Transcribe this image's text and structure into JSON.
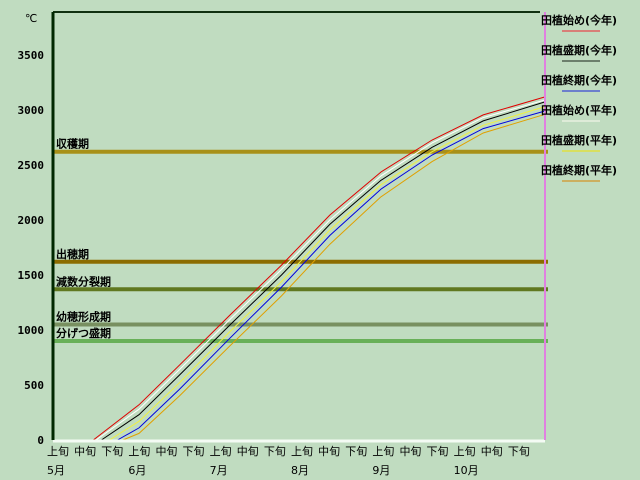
{
  "chart_data": {
    "type": "line",
    "ylabel": "℃",
    "ylim": [
      0,
      3890
    ],
    "yticks": [
      "0",
      "500",
      "1000",
      "1500",
      "2000",
      "2500",
      "3000",
      "3500"
    ],
    "x_range": [
      "5/1",
      "10/31"
    ],
    "x_period_labels": [
      "上旬",
      "中旬",
      "下旬"
    ],
    "x_month_labels": [
      "5月",
      "6月",
      "7月",
      "8月",
      "9月",
      "10月"
    ],
    "grid": false,
    "legend_placement": "right",
    "thresholds": [
      {
        "label": "収穫期",
        "value": 2620,
        "color": "#a89018"
      },
      {
        "label": "出穂期",
        "value": 1620,
        "color": "#8c6c00"
      },
      {
        "label": "減数分裂期",
        "value": 1370,
        "color": "#607820"
      },
      {
        "label": "幼穂形成期",
        "value": 1050,
        "color": "#789060"
      },
      {
        "label": "分げつ盛期",
        "value": 900,
        "color": "#68b058"
      }
    ],
    "series": [
      {
        "name": "田植始め(今年)",
        "color": "#e00000",
        "legend_color": "#e06060",
        "points": [
          [
            "5/16",
            0
          ],
          [
            "6/2",
            320
          ],
          [
            "6/17",
            680
          ],
          [
            "7/6",
            1140
          ],
          [
            "7/25",
            1590
          ],
          [
            "8/12",
            2045
          ],
          [
            "8/31",
            2436
          ],
          [
            "9/19",
            2727
          ],
          [
            "10/8",
            2955
          ],
          [
            "10/31",
            3118
          ]
        ]
      },
      {
        "name": "田植盛期(今年)",
        "color": "#000000",
        "legend_color": "#506050",
        "points": [
          [
            "5/19",
            0
          ],
          [
            "6/2",
            230
          ],
          [
            "6/17",
            590
          ],
          [
            "7/6",
            1050
          ],
          [
            "7/25",
            1500
          ],
          [
            "8/12",
            1960
          ],
          [
            "8/31",
            2360
          ],
          [
            "9/19",
            2660
          ],
          [
            "10/8",
            2900
          ],
          [
            "10/31",
            3073
          ]
        ]
      },
      {
        "name": "田植終期(今年)",
        "color": "#0000e0",
        "legend_color": "#5060d0",
        "points": [
          [
            "5/25",
            0
          ],
          [
            "6/2",
            110
          ],
          [
            "6/17",
            460
          ],
          [
            "7/6",
            930
          ],
          [
            "7/25",
            1390
          ],
          [
            "8/12",
            1860
          ],
          [
            "8/31",
            2280
          ],
          [
            "9/19",
            2590
          ],
          [
            "10/8",
            2830
          ],
          [
            "10/31",
            2990
          ]
        ]
      },
      {
        "name": "田植始め(平年)",
        "color": "#ffffff",
        "legend_color": "#e8f0e0",
        "points": [
          [
            "5/17",
            0
          ],
          [
            "6/2",
            280
          ],
          [
            "6/17",
            640
          ],
          [
            "7/6",
            1100
          ],
          [
            "7/25",
            1550
          ],
          [
            "8/12",
            2000
          ],
          [
            "8/31",
            2400
          ],
          [
            "9/19",
            2700
          ],
          [
            "10/8",
            2930
          ],
          [
            "10/31",
            3090
          ]
        ]
      },
      {
        "name": "田植盛期(平年)",
        "color": "#f0f040",
        "legend_color": "#e0e040",
        "points": [
          [
            "5/22",
            0
          ],
          [
            "6/2",
            170
          ],
          [
            "6/17",
            520
          ],
          [
            "7/6",
            990
          ],
          [
            "7/25",
            1440
          ],
          [
            "8/12",
            1910
          ],
          [
            "8/31",
            2320
          ],
          [
            "9/19",
            2620
          ],
          [
            "10/8",
            2860
          ],
          [
            "10/31",
            3030
          ]
        ]
      },
      {
        "name": "田植終期(平年)",
        "color": "#e0a000",
        "legend_color": "#d0a040",
        "points": [
          [
            "5/27",
            0
          ],
          [
            "6/2",
            60
          ],
          [
            "6/17",
            400
          ],
          [
            "7/6",
            860
          ],
          [
            "7/25",
            1310
          ],
          [
            "8/12",
            1780
          ],
          [
            "8/31",
            2210
          ],
          [
            "9/19",
            2530
          ],
          [
            "10/8",
            2790
          ],
          [
            "10/31",
            2960
          ]
        ]
      }
    ]
  }
}
